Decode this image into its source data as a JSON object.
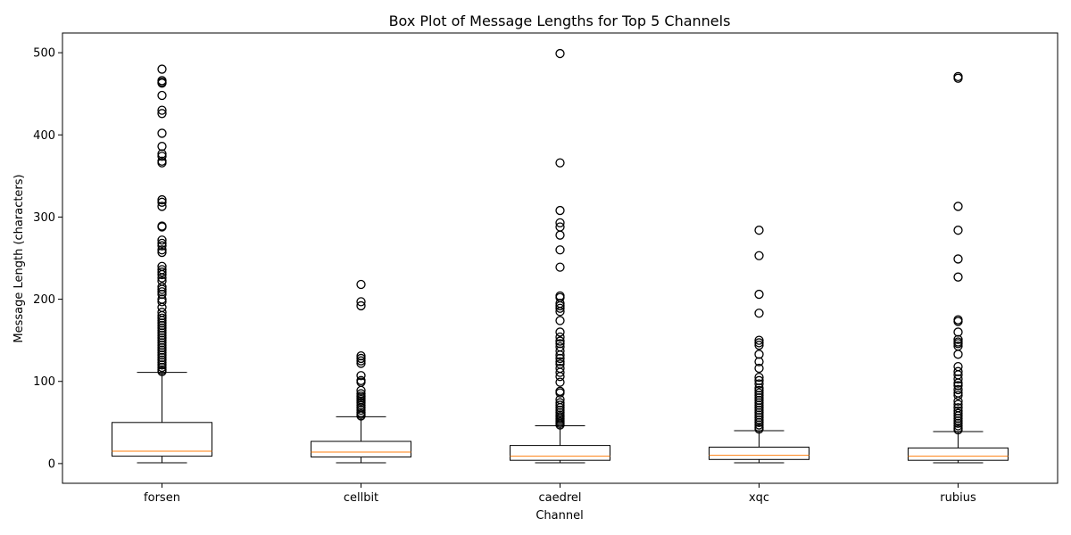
{
  "chart_data": {
    "type": "box",
    "title": "Box Plot of Message Lengths for Top 5 Channels",
    "xlabel": "Channel",
    "ylabel": "Message Length (characters)",
    "ylim": [
      -24,
      524
    ],
    "yticks": [
      "0",
      "100",
      "200",
      "300",
      "400",
      "500"
    ],
    "grid": false,
    "series": [
      {
        "name": "forsen",
        "whisker_low": 1,
        "q1": 9,
        "median": 15,
        "q3": 50,
        "whisker_high": 111,
        "outliers": [
          480,
          466,
          464,
          463,
          448,
          430,
          426,
          402,
          386,
          377,
          374,
          368,
          366,
          321,
          318,
          313,
          289,
          288,
          272,
          268,
          265,
          260,
          257,
          240,
          236,
          233,
          230,
          226,
          222,
          215,
          212,
          209,
          206,
          200,
          197,
          190,
          184,
          180,
          177,
          174,
          171,
          168,
          165,
          162,
          159,
          156,
          153,
          150,
          147,
          144,
          141,
          138,
          135,
          132,
          129,
          126,
          123,
          120,
          117,
          114,
          112
        ]
      },
      {
        "name": "cellbit",
        "whisker_low": 1,
        "q1": 8,
        "median": 14,
        "q3": 27,
        "whisker_high": 57,
        "outliers": [
          218,
          197,
          192,
          131,
          128,
          125,
          122,
          107,
          101,
          99,
          89,
          85,
          82,
          80,
          78,
          76,
          74,
          71,
          68,
          65,
          62,
          60,
          58
        ]
      },
      {
        "name": "caedrel",
        "whisker_low": 1,
        "q1": 4,
        "median": 9,
        "q3": 22,
        "whisker_high": 46,
        "outliers": [
          499,
          366,
          308,
          293,
          288,
          278,
          260,
          239,
          204,
          202,
          195,
          192,
          189,
          185,
          174,
          160,
          154,
          149,
          146,
          142,
          137,
          132,
          128,
          124,
          121,
          116,
          111,
          106,
          99,
          88,
          86,
          78,
          74,
          71,
          68,
          65,
          62,
          59,
          57,
          55,
          53,
          51,
          49,
          47
        ]
      },
      {
        "name": "xqc",
        "whisker_low": 1,
        "q1": 5,
        "median": 10,
        "q3": 20,
        "whisker_high": 40,
        "outliers": [
          284,
          253,
          206,
          183,
          150,
          147,
          144,
          133,
          124,
          116,
          105,
          101,
          97,
          92,
          89,
          86,
          83,
          80,
          77,
          74,
          71,
          68,
          65,
          62,
          59,
          56,
          53,
          50,
          47,
          44,
          42
        ]
      },
      {
        "name": "rubius",
        "whisker_low": 1,
        "q1": 4,
        "median": 9,
        "q3": 19,
        "whisker_high": 39,
        "outliers": [
          471,
          469,
          313,
          284,
          249,
          227,
          175,
          173,
          160,
          151,
          148,
          146,
          143,
          133,
          118,
          112,
          108,
          103,
          98,
          95,
          90,
          86,
          83,
          76,
          72,
          68,
          64,
          61,
          58,
          55,
          52,
          49,
          46,
          43,
          41
        ]
      }
    ]
  },
  "colors": {
    "box_edge": "#000000",
    "median_line": "#ff7f0e",
    "flier_edge": "#000000",
    "background": "#ffffff"
  }
}
